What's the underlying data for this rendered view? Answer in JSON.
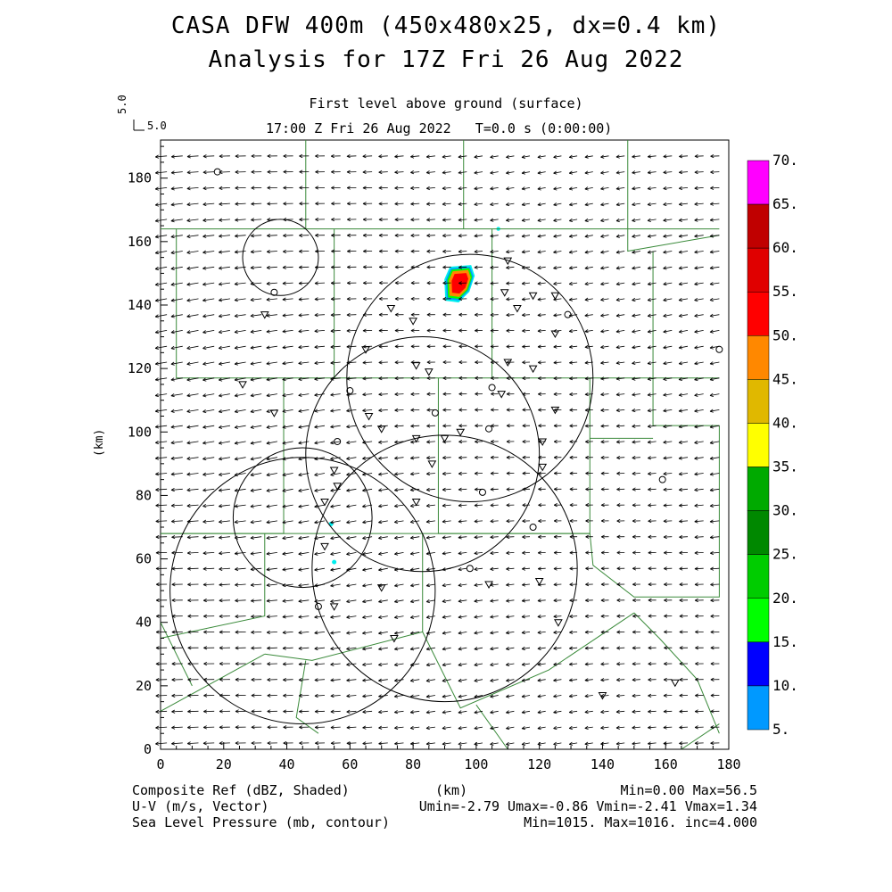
{
  "title": {
    "line1": "CASA DFW 400m (450x480x25, dx=0.4 km)",
    "line2": "Analysis for 17Z Fri 26 Aug 2022"
  },
  "subtitle": {
    "level": "First level above ground (surface)",
    "time": "17:00 Z Fri 26 Aug 2022   T=0.0 s (0:00:00)"
  },
  "reference_vector": {
    "label": "5.0",
    "label_vertical": "5.0"
  },
  "axes": {
    "x_label": "(km)",
    "y_label": "(km)",
    "x_ticks": [
      "0",
      "20",
      "40",
      "60",
      "80",
      "100",
      "120",
      "140",
      "160",
      "180"
    ],
    "y_ticks": [
      "0",
      "20",
      "40",
      "60",
      "80",
      "100",
      "120",
      "140",
      "160",
      "180"
    ],
    "x_range": [
      0,
      180
    ],
    "y_range": [
      0,
      192
    ]
  },
  "colorbar": {
    "labels": [
      "70.",
      "65.",
      "60.",
      "55.",
      "50.",
      "45.",
      "40.",
      "35.",
      "30.",
      "25.",
      "20.",
      "15.",
      "10.",
      "5."
    ],
    "colors": [
      "#ff00ff",
      "#c00000",
      "#e00000",
      "#ff0000",
      "#ff8800",
      "#e0b800",
      "#ffff00",
      "#00aa00",
      "#008800",
      "#00cc00",
      "#00ff00",
      "#0000ff",
      "#0099ff",
      "#00eeee"
    ]
  },
  "footer": {
    "left1": "Composite Ref (dBZ, Shaded)",
    "left2": "U-V (m/s, Vector)",
    "left3": "Sea Level Pressure (mb, contour)",
    "right1": "Min=0.00 Max=56.5",
    "right2": "Umin=-2.79 Umax=-0.86 Vmin=-2.41 Vmax=1.34",
    "right3": "Min=1015. Max=1016. inc=4.000"
  },
  "colors": {
    "county_lines": "#3a8a3a",
    "radar_rings": "#000000",
    "vectors": "#000000"
  },
  "map_data": {
    "radar_rings": [
      {
        "cx": 98,
        "cy": 117,
        "r": 39
      },
      {
        "cx": 83,
        "cy": 93,
        "r": 37
      },
      {
        "cx": 90,
        "cy": 57,
        "r": 42
      },
      {
        "cx": 45,
        "cy": 50,
        "r": 42
      },
      {
        "cx": 45,
        "cy": 73,
        "r": 22
      },
      {
        "cx": 38,
        "cy": 155,
        "r": 12
      }
    ],
    "storm_cell_center": [
      95,
      147
    ],
    "max_reflectivity": 56.5
  }
}
